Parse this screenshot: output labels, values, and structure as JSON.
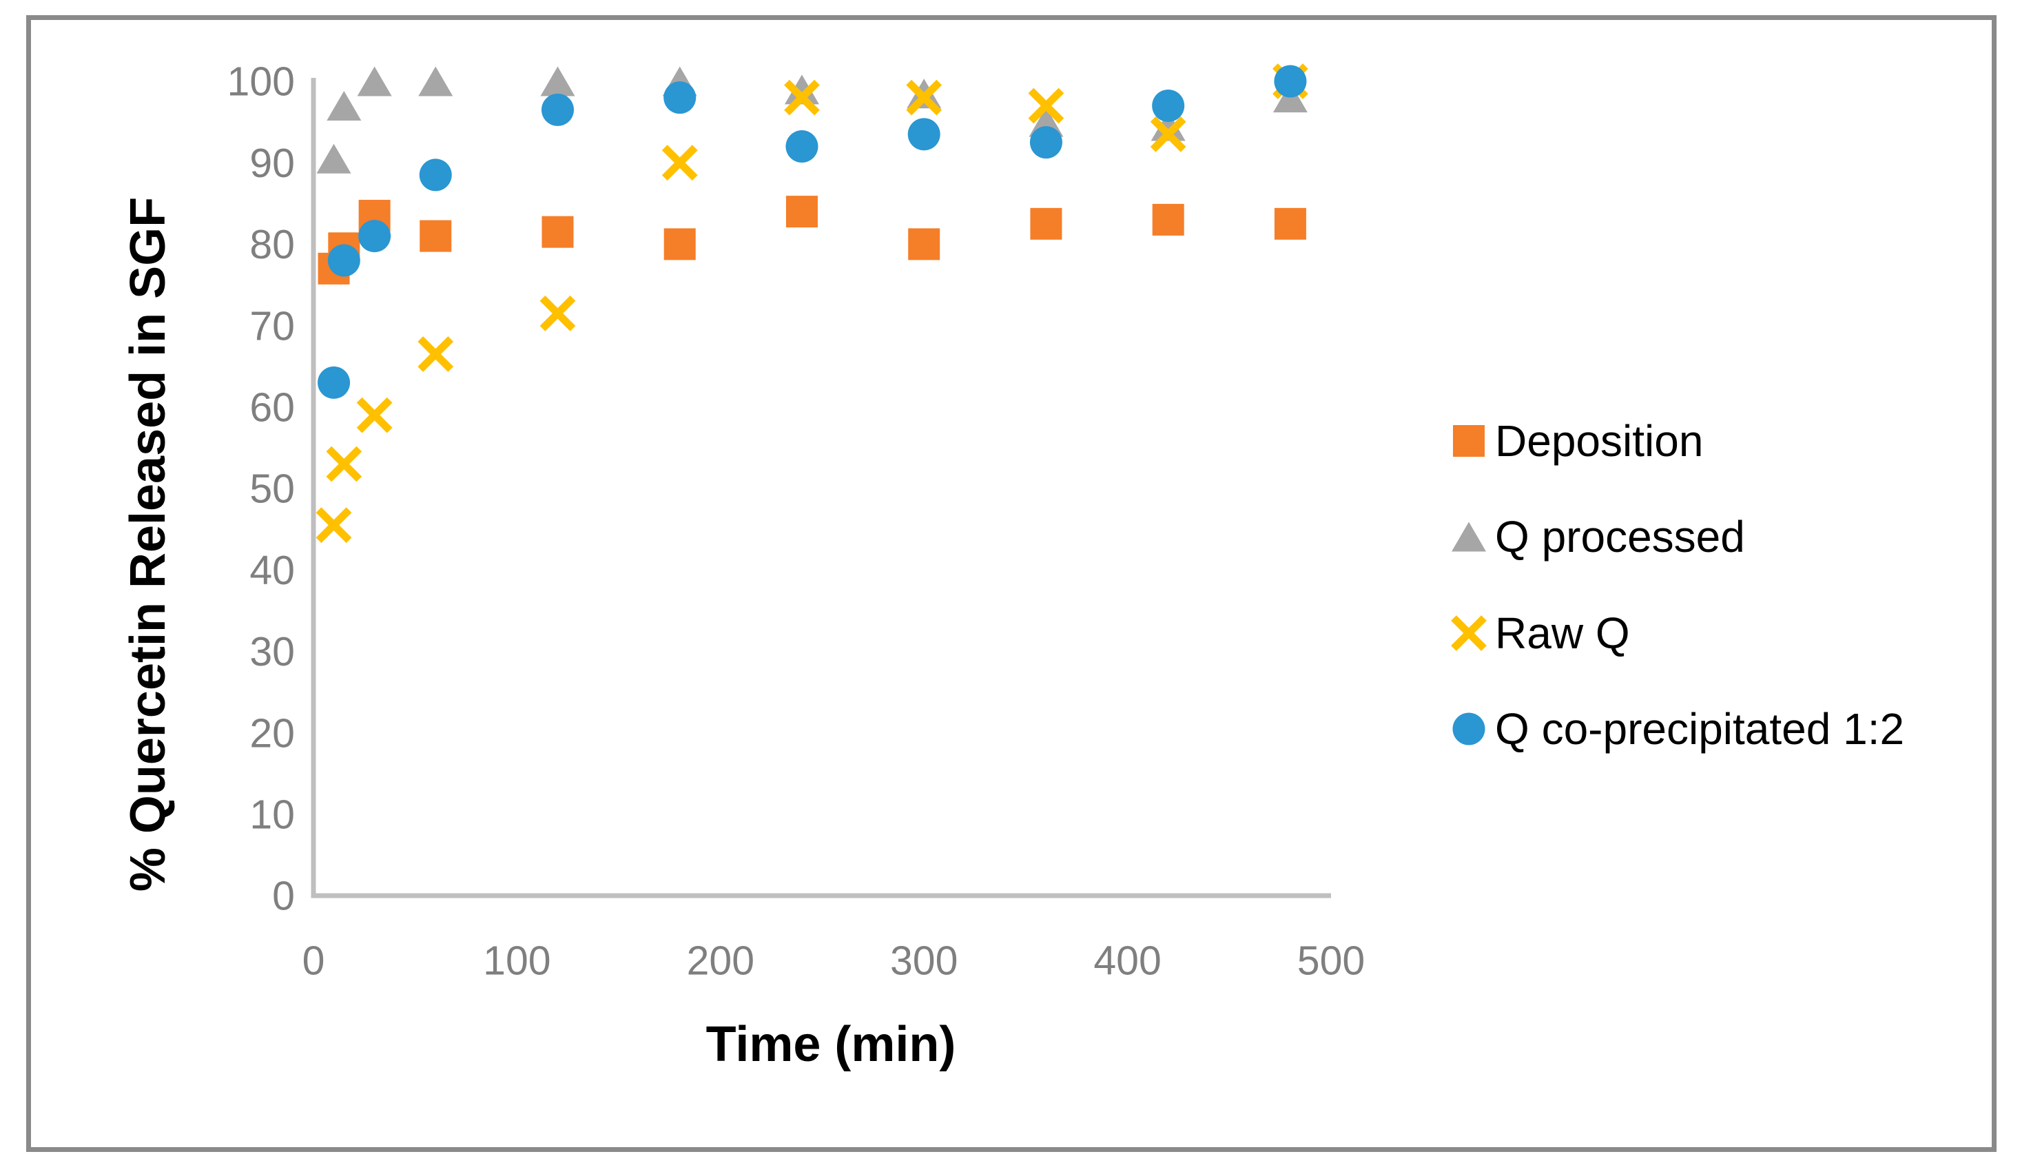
{
  "figure": {
    "background": "#FFFFFF",
    "border_color": "#8A8A8A"
  },
  "chart_data": {
    "type": "scatter",
    "title": "",
    "xlabel": "Time (min)",
    "ylabel": "% Quercetin Released in SGF",
    "xlim": [
      0,
      500
    ],
    "ylim": [
      0,
      100
    ],
    "x_ticks": [
      0,
      100,
      200,
      300,
      400,
      500
    ],
    "y_ticks": [
      0,
      10,
      20,
      30,
      40,
      50,
      60,
      70,
      80,
      90,
      100
    ],
    "grid": false,
    "legend_position": "right-center",
    "axis_line_color": "#BFBFBF",
    "tick_label_color": "#7F7F7F",
    "x": [
      10,
      15,
      30,
      60,
      120,
      180,
      240,
      300,
      360,
      420,
      480
    ],
    "series": [
      {
        "name": "Deposition",
        "marker": "square",
        "color": "#F57E28",
        "values": [
          77,
          79.5,
          83.5,
          81,
          81.5,
          80,
          84,
          80,
          82.5,
          83,
          82.5
        ]
      },
      {
        "name": "Q processed",
        "marker": "triangle",
        "color": "#A6A6A6",
        "values": [
          90.5,
          97,
          100,
          100,
          100,
          100,
          99,
          98.5,
          95,
          94.5,
          98
        ]
      },
      {
        "name": "Raw Q",
        "marker": "x",
        "color": "#FFC000",
        "values": [
          45.5,
          53,
          59,
          66.5,
          71.5,
          90,
          98,
          98,
          97,
          93.5,
          100
        ]
      },
      {
        "name": "Q co-precipitated 1:2",
        "marker": "circle",
        "color": "#2A96D2",
        "values": [
          63,
          78,
          81,
          88.5,
          96.5,
          98,
          92,
          93.5,
          92.5,
          97,
          100
        ]
      }
    ]
  }
}
